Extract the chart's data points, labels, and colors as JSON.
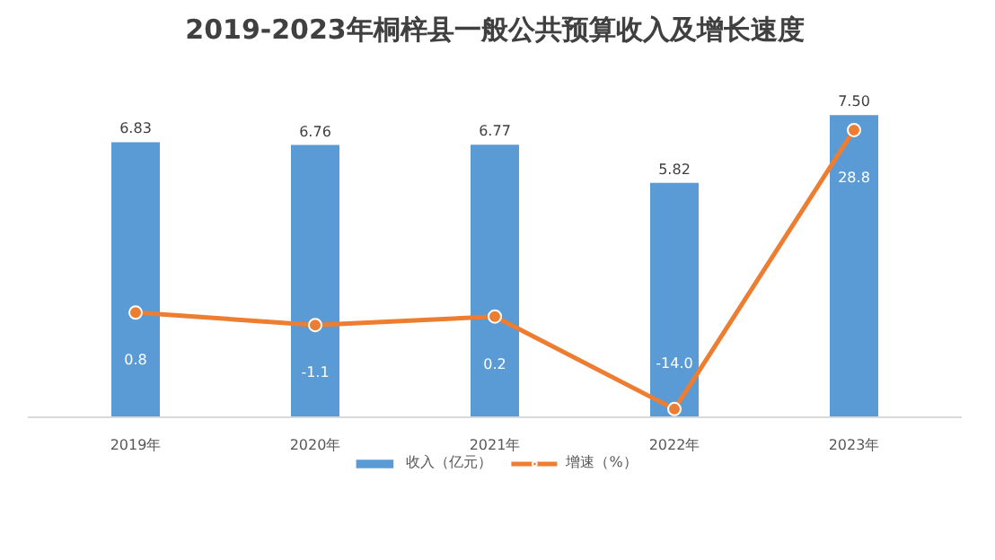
{
  "chart_data": {
    "type": "bar",
    "title": "2019-2023年桐梓县一般公共预算收入及增长速度",
    "categories": [
      "2019年",
      "2020年",
      "2021年",
      "2022年",
      "2023年"
    ],
    "series": [
      {
        "name": "收入（亿元）",
        "color": "#5b9bd5",
        "values": [
          6.83,
          6.76,
          6.77,
          5.82,
          7.5
        ],
        "value_labels": [
          "6.83",
          "6.76",
          "6.77",
          "5.82",
          "7.50"
        ]
      },
      {
        "name": "增速（%）",
        "type": "line",
        "axis": "y2",
        "color": "#ed7d31",
        "values": [
          0.8,
          -1.1,
          0.2,
          -14.0,
          28.8
        ],
        "value_labels": [
          "0.8",
          "-1.1",
          "0.2",
          "-14.0",
          "28.8"
        ]
      }
    ],
    "grid": false,
    "tick_labels": "x",
    "legend": "bottom",
    "marker": "circle",
    "line_style": "solid"
  }
}
